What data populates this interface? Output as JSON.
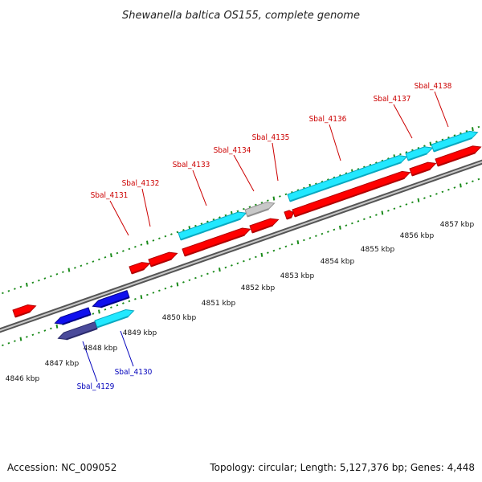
{
  "title": "Shewanella baltica OS155, complete genome",
  "footer": {
    "accession": "Accession: NC_009052",
    "stats": "Topology: circular; Length: 5,127,376 bp; Genes: 4,448"
  },
  "colors": {
    "forward_gene": "#ff0000",
    "forward_gene_dark": "#b00000",
    "cyan_gene": "#22e8ff",
    "cyan_gene_dark": "#0aa8c0",
    "gray_gene": "#c8c8c8",
    "gray_gene_dark": "#909090",
    "reverse_gene": "#1010ee",
    "reverse_gene_dark": "#00008a",
    "reverse_gene_alt": "#4a4a9a",
    "reverse_gene_alt_dark": "#2a2a6a",
    "tick": "#1a8a1a",
    "red_label": "#cc0000",
    "blue_label": "#0000bb"
  },
  "position_labels": [
    "4846 kbp",
    "4847 kbp",
    "4848 kbp",
    "4849 kbp",
    "4850 kbp",
    "4851 kbp",
    "4852 kbp",
    "4853 kbp",
    "4854 kbp",
    "4855 kbp",
    "4856 kbp",
    "4857 kbp"
  ],
  "gene_labels_forward": [
    "Sbal_4131",
    "Sbal_4132",
    "Sbal_4133",
    "Sbal_4134",
    "Sbal_4135",
    "Sbal_4136",
    "Sbal_4137",
    "Sbal_4138"
  ],
  "gene_labels_reverse": [
    "Sbal_4129",
    "Sbal_4130"
  ]
}
